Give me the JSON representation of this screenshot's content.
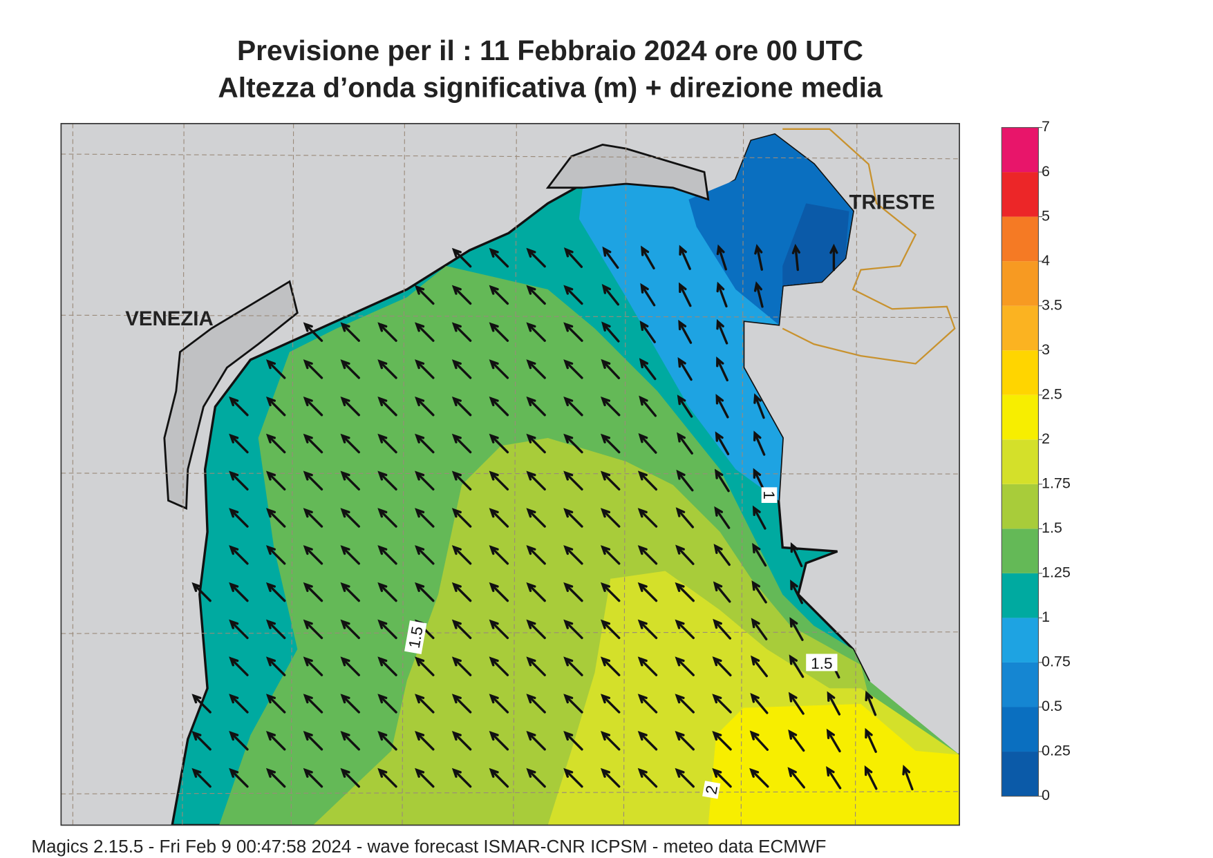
{
  "header": {
    "title": "Previsione per il  :  11  Febbraio 2024   ore 00 UTC",
    "subtitle": "Altezza d’onda significativa (m) + direzione media"
  },
  "places": [
    "VENEZIA",
    "TRIESTE"
  ],
  "contour_labels": [
    1,
    1.5,
    1.5,
    2
  ],
  "colorbar": {
    "ticks": [
      0,
      0.25,
      0.5,
      0.75,
      1,
      1.25,
      1.5,
      1.75,
      2,
      2.5,
      3,
      3.5,
      4,
      5,
      6,
      7
    ],
    "colors": [
      "#0b5aa8",
      "#0a6fc0",
      "#1586d2",
      "#1ea3e2",
      "#00aaa0",
      "#64b957",
      "#a8cc3a",
      "#d4e02a",
      "#f7ee00",
      "#ffd500",
      "#fbb321",
      "#f79a22",
      "#f57a24",
      "#ec2628",
      "#e8156a"
    ]
  },
  "footer": "Magics 2.15.5 - Fri Feb  9 00:47:58 2024 - wave forecast  ISMAR-CNR  ICPSM - meteo data   ECMWF"
}
